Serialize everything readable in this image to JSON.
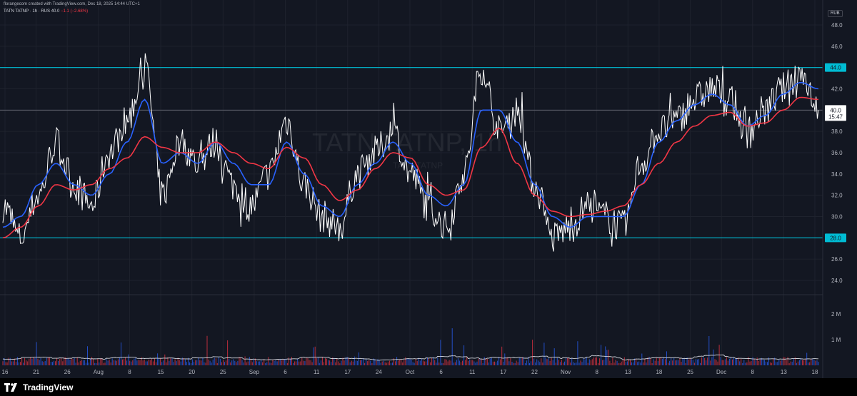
{
  "header": {
    "caption": "florangecom created with TradingView.com, Dec 18, 2025 14:44 UTC+1",
    "symbol": "TATN TATNP · 1h · RUS",
    "last": "40.0",
    "change": "−1.1 (−2.68%)",
    "currency": "RUB"
  },
  "watermark": {
    "main": "TATN TATNP, 1h",
    "sub": "TATN TATNP"
  },
  "footer": {
    "brand": "TradingView"
  },
  "colors": {
    "background": "#131722",
    "price": "#ffffff",
    "ma_fast": "#2962ff",
    "ma_slow": "#f23645",
    "level": "#00bcd4",
    "vol_up": "#2962ff",
    "vol_down": "#f23645",
    "grid": "#1e222d"
  },
  "chart_data": {
    "type": "line",
    "price_axis": {
      "min": 24,
      "max": 48,
      "ticks": [
        "48.0",
        "46.0",
        "44.0",
        "42.0",
        "40.0",
        "38.0",
        "36.0",
        "34.0",
        "32.0",
        "30.0",
        "28.0",
        "26.0",
        "24.0"
      ]
    },
    "levels": [
      {
        "value": 44.0,
        "label": "44.0"
      },
      {
        "value": 28.0,
        "label": "28.0"
      }
    ],
    "last_price": {
      "value": 40.0,
      "label": "40.0",
      "countdown": "15:47"
    },
    "x_ticks": [
      "16",
      "21",
      "26",
      "Aug",
      "8",
      "15",
      "20",
      "25",
      "Sep",
      "6",
      "11",
      "17",
      "24",
      "Oct",
      "6",
      "11",
      "17",
      "22",
      "Nov",
      "8",
      "13",
      "18",
      "25",
      "Dec",
      "8",
      "13",
      "18"
    ],
    "price_anchors": [
      31,
      28,
      32,
      37,
      33,
      31,
      36,
      39,
      44,
      32,
      37,
      35,
      37,
      33,
      31,
      34,
      39,
      33,
      30,
      29,
      34,
      36,
      38,
      34,
      31,
      29,
      34,
      44,
      38,
      40,
      33,
      28,
      29,
      31,
      30,
      29,
      35,
      38,
      39,
      41,
      42,
      41,
      38,
      40,
      42,
      43.5,
      40.5
    ],
    "ma_fast": [
      29,
      30,
      33,
      35,
      33,
      32,
      34,
      37,
      41,
      35,
      36,
      35,
      37,
      35,
      33,
      33,
      37,
      34,
      31,
      30,
      33,
      35,
      37,
      35,
      32,
      31,
      33,
      40,
      40,
      37,
      33,
      30,
      29,
      30,
      30,
      30,
      33,
      37,
      39,
      40.5,
      41.5,
      40.5,
      38.5,
      39.5,
      41.5,
      42.6,
      42.0
    ],
    "ma_slow": [
      28,
      29,
      31,
      33,
      32.5,
      33,
      34.5,
      35.5,
      37.5,
      36.5,
      36,
      36,
      37,
      36,
      35,
      34.5,
      36.5,
      35.5,
      33,
      31.5,
      32.5,
      34.5,
      36,
      35.5,
      33,
      32,
      32.5,
      36.5,
      38.3,
      35,
      32,
      30.5,
      30,
      30.2,
      30.5,
      31,
      33,
      35,
      37,
      38.5,
      39.5,
      39.8,
      38.5,
      38.8,
      40,
      41.2,
      41.0
    ],
    "volume_axis": {
      "ticks": [
        "2 M",
        "1 M"
      ],
      "max_m": 2.4
    }
  }
}
